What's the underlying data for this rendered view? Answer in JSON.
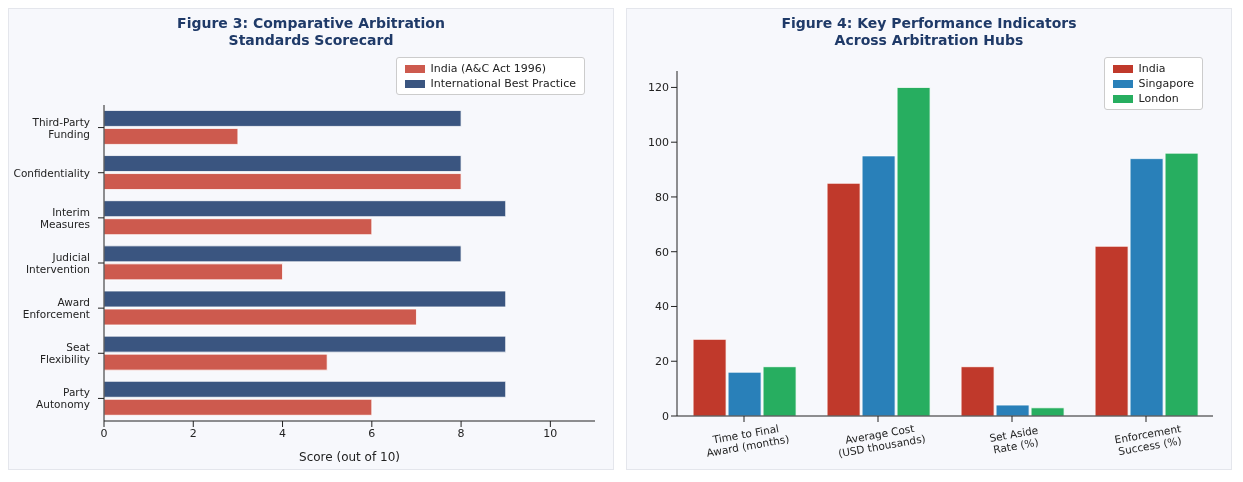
{
  "chart_data": [
    {
      "type": "bar",
      "orientation": "horizontal",
      "title": "Figure 3: Comparative Arbitration\nStandards Scorecard",
      "xlabel": "Score (out of 10)",
      "categories": [
        "Third-Party\nFunding",
        "Confidentiality",
        "Interim\nMeasures",
        "Judicial\nIntervention",
        "Award\nEnforcement",
        "Seat\nFlexibility",
        "Party\nAutonomy"
      ],
      "series": [
        {
          "name": "India (A&C Act 1996)",
          "color": "#cd5a4e",
          "values": [
            3,
            8,
            6,
            4,
            7,
            5,
            6
          ]
        },
        {
          "name": "International Best Practice",
          "color": "#3a5580",
          "values": [
            8,
            8,
            9,
            8,
            9,
            9,
            9
          ]
        }
      ],
      "xlim": [
        0,
        11
      ],
      "xticks": [
        0,
        2,
        4,
        6,
        8,
        10
      ],
      "legend": "top right",
      "grid": false
    },
    {
      "type": "bar",
      "title": "Figure 4: Key Performance Indicators\nAcross Arbitration Hubs",
      "categories": [
        "Time to Final\nAward (months)",
        "Average Cost\n(USD thousands)",
        "Set Aside\nRate (%)",
        "Enforcement\nSuccess (%)"
      ],
      "series": [
        {
          "name": "India",
          "color": "#c0392b",
          "values": [
            28,
            85,
            18,
            62
          ]
        },
        {
          "name": "Singapore",
          "color": "#2980b9",
          "values": [
            16,
            95,
            4,
            94
          ]
        },
        {
          "name": "London",
          "color": "#27ae60",
          "values": [
            18,
            120,
            3,
            96
          ]
        }
      ],
      "ylim": [
        0,
        126
      ],
      "yticks": [
        0,
        20,
        40,
        60,
        80,
        100,
        120
      ],
      "legend": "top right",
      "grid": false
    }
  ]
}
